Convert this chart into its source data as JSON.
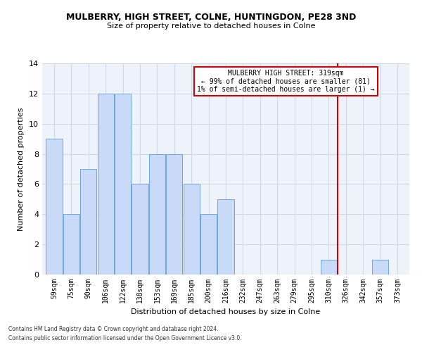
{
  "title": "MULBERRY, HIGH STREET, COLNE, HUNTINGDON, PE28 3ND",
  "subtitle": "Size of property relative to detached houses in Colne",
  "xlabel": "Distribution of detached houses by size in Colne",
  "ylabel": "Number of detached properties",
  "categories": [
    "59sqm",
    "75sqm",
    "90sqm",
    "106sqm",
    "122sqm",
    "138sqm",
    "153sqm",
    "169sqm",
    "185sqm",
    "200sqm",
    "216sqm",
    "232sqm",
    "247sqm",
    "263sqm",
    "279sqm",
    "295sqm",
    "310sqm",
    "326sqm",
    "342sqm",
    "357sqm",
    "373sqm"
  ],
  "values": [
    9,
    4,
    7,
    12,
    12,
    6,
    8,
    8,
    6,
    4,
    5,
    0,
    0,
    0,
    0,
    0,
    1,
    0,
    0,
    1,
    0
  ],
  "bar_color": "#c9daf8",
  "bar_edge_color": "#6fa8dc",
  "grid_color": "#d0d8e8",
  "vline_x_index": 16.5,
  "vline_color": "#cc0000",
  "annotation_text": "MULBERRY HIGH STREET: 319sqm\n← 99% of detached houses are smaller (81)\n1% of semi-detached houses are larger (1) →",
  "annotation_box_color": "#ffffff",
  "annotation_box_edge": "#cc0000",
  "ylim": [
    0,
    14
  ],
  "yticks": [
    0,
    2,
    4,
    6,
    8,
    10,
    12,
    14
  ],
  "footer_line1": "Contains HM Land Registry data © Crown copyright and database right 2024.",
  "footer_line2": "Contains public sector information licensed under the Open Government Licence v3.0.",
  "background_color": "#ffffff",
  "plot_bg_color": "#eef2fb",
  "title_fontsize": 9,
  "subtitle_fontsize": 8,
  "ylabel_fontsize": 8,
  "xlabel_fontsize": 8,
  "tick_fontsize": 7
}
